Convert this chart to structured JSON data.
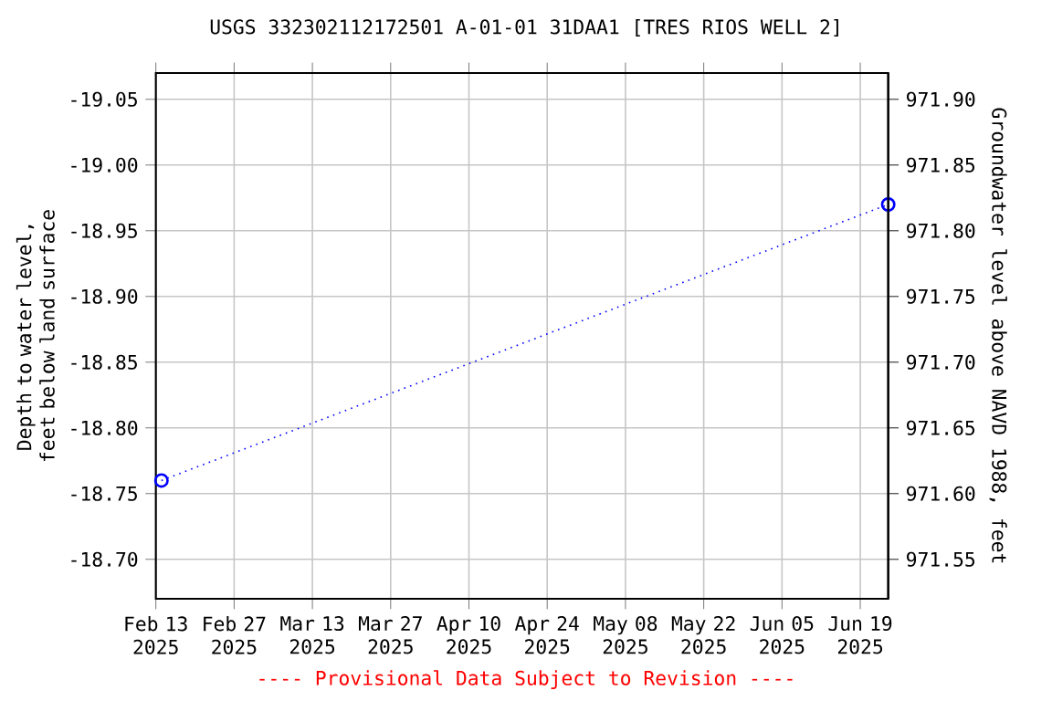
{
  "chart_data": {
    "type": "line",
    "title": "USGS 332302112172501 A-01-01 31DAA1 [TRES RIOS WELL 2]",
    "ylabel": "Depth to water level, feet below land surface",
    "y2label": "Groundwater level above NAVD 1988, feet",
    "x": [
      "2025-02-14",
      "2025-06-24"
    ],
    "series": [
      {
        "color": "#0000ff",
        "values": [
          -18.76,
          -18.97
        ]
      }
    ],
    "xlim": [
      "2025-02-13",
      "2025-06-24"
    ],
    "xticks": [
      {
        "value": "2025-02-13",
        "label": "Feb 13 2025"
      },
      {
        "value": "2025-02-27",
        "label": "Feb 27 2025"
      },
      {
        "value": "2025-03-13",
        "label": "Mar 13 2025"
      },
      {
        "value": "2025-03-27",
        "label": "Mar 27 2025"
      },
      {
        "value": "2025-04-10",
        "label": "Apr 10 2025"
      },
      {
        "value": "2025-04-24",
        "label": "Apr 24 2025"
      },
      {
        "value": "2025-05-08",
        "label": "May 08 2025"
      },
      {
        "value": "2025-05-22",
        "label": "May 22 2025"
      },
      {
        "value": "2025-06-05",
        "label": "Jun 05 2025"
      },
      {
        "value": "2025-06-19",
        "label": "Jun 19 2025"
      }
    ],
    "ylim": [
      -18.67,
      -19.07
    ],
    "yticks": [
      {
        "value": -19.05,
        "label": "-19.05"
      },
      {
        "value": -19.0,
        "label": "-19.00"
      },
      {
        "value": -18.95,
        "label": "-18.95"
      },
      {
        "value": -18.9,
        "label": "-18.90"
      },
      {
        "value": -18.85,
        "label": "-18.85"
      },
      {
        "value": -18.8,
        "label": "-18.80"
      },
      {
        "value": -18.75,
        "label": "-18.75"
      },
      {
        "value": -18.7,
        "label": "-18.70"
      }
    ],
    "y2lim": [
      971.52,
      971.92
    ],
    "y2ticks": [
      {
        "value": 971.9,
        "label": "971.90"
      },
      {
        "value": 971.85,
        "label": "971.85"
      },
      {
        "value": 971.8,
        "label": "971.80"
      },
      {
        "value": 971.75,
        "label": "971.75"
      },
      {
        "value": 971.7,
        "label": "971.70"
      },
      {
        "value": 971.65,
        "label": "971.65"
      },
      {
        "value": 971.6,
        "label": "971.60"
      },
      {
        "value": 971.55,
        "label": "971.55"
      }
    ],
    "grid": true,
    "marker": "circle",
    "line_style": "dotted",
    "annotations": [
      "---- Provisional Data Subject to Revision ----"
    ]
  }
}
